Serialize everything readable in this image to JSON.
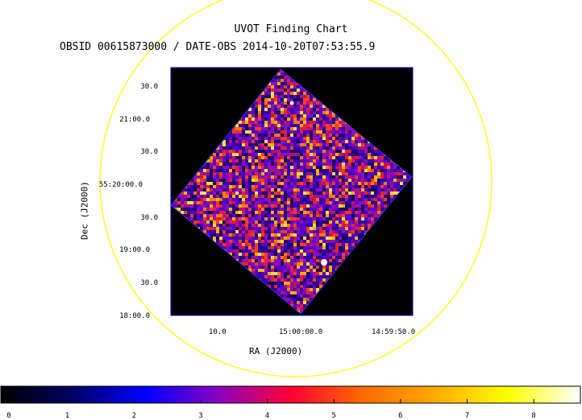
{
  "title": "UVOT Finding Chart",
  "subtitle": "OBSID 00615873000 / DATE-OBS 2014-10-20T07:53:55.9",
  "axes": {
    "xlabel": "RA (J2000)",
    "ylabel": "Dec (J2000)",
    "ra_ticks": [
      "10.0",
      "15:00:00.0",
      "14:59:50.0"
    ],
    "dec_ticks": [
      "30.0",
      "21:00.0",
      "30.0",
      "55:20:00.0",
      "30.0",
      "19:00.0",
      "30.0",
      "18:00.0"
    ]
  },
  "colorbar": {
    "ticks": [
      "0",
      "1",
      "2",
      "3",
      "4",
      "5",
      "6",
      "7",
      "8"
    ],
    "range": [
      0,
      8.7
    ],
    "colormap": [
      "#000000",
      "#000066",
      "#0000ff",
      "#8a00c0",
      "#ff0033",
      "#ff6a00",
      "#ffaa00",
      "#ffff00",
      "#ffffff"
    ]
  },
  "colors": {
    "circle": "#ffff00",
    "frame": "#0000cc",
    "image_background": "#000000"
  }
}
